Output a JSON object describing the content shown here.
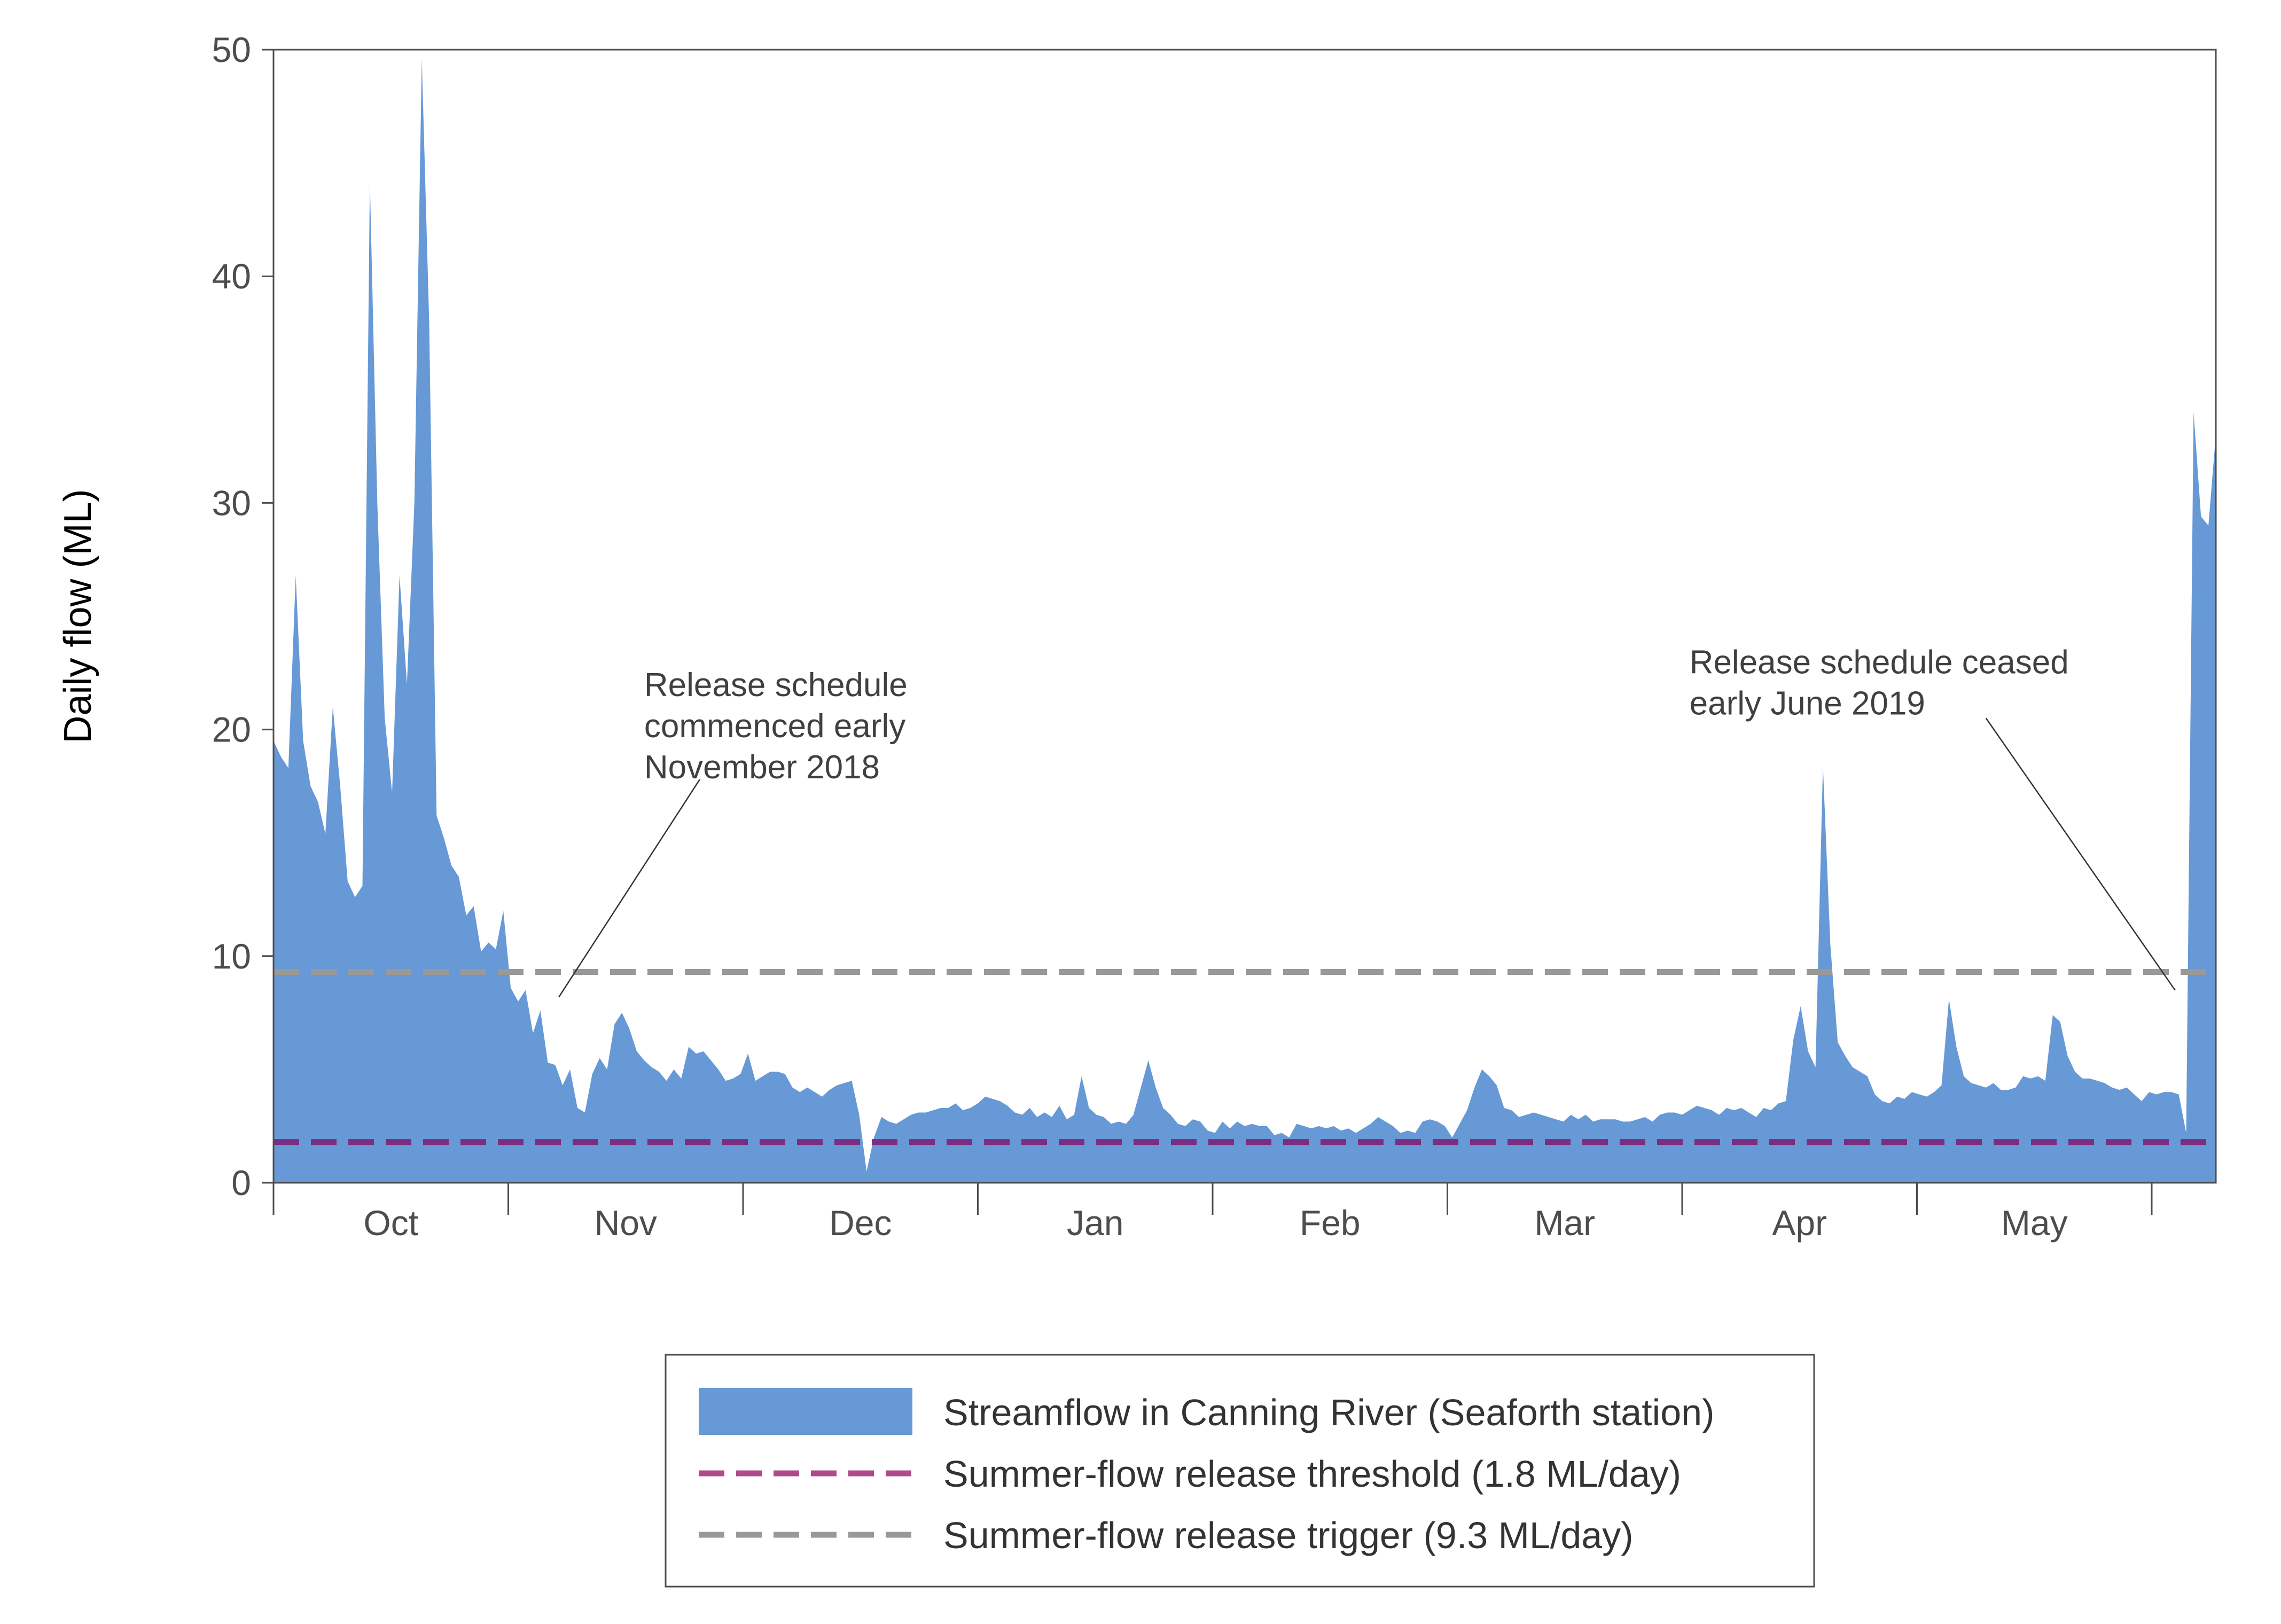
{
  "chart_data": {
    "type": "area",
    "ylabel": "Daily flow (ML)",
    "xlabel": "",
    "ylim": [
      0,
      50
    ],
    "yticks": [
      0,
      10,
      20,
      30,
      40,
      50
    ],
    "grid": false,
    "legend_position": "bottom",
    "month_labels": [
      "Oct",
      "Nov",
      "Dec",
      "Jan",
      "Feb",
      "Mar",
      "Apr",
      "May"
    ],
    "x_unit": "day since 1 October 2018",
    "series": [
      {
        "name": "Streamflow in Canning River (Seaforth station)",
        "kind": "area",
        "color": "#6699d6",
        "points": [
          [
            0,
            19.5
          ],
          [
            1,
            18.8
          ],
          [
            2,
            18.3
          ],
          [
            3,
            26.8
          ],
          [
            4,
            19.5
          ],
          [
            5,
            17.5
          ],
          [
            6,
            16.8
          ],
          [
            7,
            15.4
          ],
          [
            8,
            21.0
          ],
          [
            9,
            17.5
          ],
          [
            10,
            13.3
          ],
          [
            11,
            12.6
          ],
          [
            12,
            13.1
          ],
          [
            13,
            44.2
          ],
          [
            14,
            30.0
          ],
          [
            15,
            20.5
          ],
          [
            16,
            17.2
          ],
          [
            17,
            26.8
          ],
          [
            18,
            22.0
          ],
          [
            19,
            30.0
          ],
          [
            20,
            49.6
          ],
          [
            21,
            38.0
          ],
          [
            22,
            16.2
          ],
          [
            23,
            15.2
          ],
          [
            24,
            14.0
          ],
          [
            25,
            13.5
          ],
          [
            26,
            11.8
          ],
          [
            27,
            12.2
          ],
          [
            28,
            10.2
          ],
          [
            29,
            10.6
          ],
          [
            30,
            10.3
          ],
          [
            31,
            12.0
          ],
          [
            32,
            8.6
          ],
          [
            33,
            8.0
          ],
          [
            34,
            8.5
          ],
          [
            35,
            6.6
          ],
          [
            36,
            7.6
          ],
          [
            37,
            5.3
          ],
          [
            38,
            5.2
          ],
          [
            39,
            4.3
          ],
          [
            40,
            5.0
          ],
          [
            41,
            3.3
          ],
          [
            42,
            3.1
          ],
          [
            43,
            4.8
          ],
          [
            44,
            5.5
          ],
          [
            45,
            5.0
          ],
          [
            46,
            7.0
          ],
          [
            47,
            7.5
          ],
          [
            48,
            6.8
          ],
          [
            49,
            5.8
          ],
          [
            50,
            5.4
          ],
          [
            51,
            5.1
          ],
          [
            52,
            4.9
          ],
          [
            53,
            4.5
          ],
          [
            54,
            5.0
          ],
          [
            55,
            4.6
          ],
          [
            56,
            6.0
          ],
          [
            57,
            5.7
          ],
          [
            58,
            5.8
          ],
          [
            59,
            5.4
          ],
          [
            60,
            5.0
          ],
          [
            61,
            4.5
          ],
          [
            62,
            4.6
          ],
          [
            63,
            4.8
          ],
          [
            64,
            5.7
          ],
          [
            65,
            4.5
          ],
          [
            66,
            4.7
          ],
          [
            67,
            4.9
          ],
          [
            68,
            4.9
          ],
          [
            69,
            4.8
          ],
          [
            70,
            4.2
          ],
          [
            71,
            4.0
          ],
          [
            72,
            4.2
          ],
          [
            73,
            4.0
          ],
          [
            74,
            3.8
          ],
          [
            75,
            4.1
          ],
          [
            76,
            4.3
          ],
          [
            77,
            4.4
          ],
          [
            78,
            4.5
          ],
          [
            79,
            3.0
          ],
          [
            80,
            0.5
          ],
          [
            81,
            2.0
          ],
          [
            82,
            2.9
          ],
          [
            83,
            2.7
          ],
          [
            84,
            2.6
          ],
          [
            85,
            2.8
          ],
          [
            86,
            3.0
          ],
          [
            87,
            3.1
          ],
          [
            88,
            3.1
          ],
          [
            89,
            3.2
          ],
          [
            90,
            3.3
          ],
          [
            91,
            3.3
          ],
          [
            92,
            3.5
          ],
          [
            93,
            3.2
          ],
          [
            94,
            3.3
          ],
          [
            95,
            3.5
          ],
          [
            96,
            3.8
          ],
          [
            97,
            3.7
          ],
          [
            98,
            3.6
          ],
          [
            99,
            3.4
          ],
          [
            100,
            3.1
          ],
          [
            101,
            3.0
          ],
          [
            102,
            3.3
          ],
          [
            103,
            2.9
          ],
          [
            104,
            3.1
          ],
          [
            105,
            2.9
          ],
          [
            106,
            3.4
          ],
          [
            107,
            2.8
          ],
          [
            108,
            3.0
          ],
          [
            109,
            4.7
          ],
          [
            110,
            3.3
          ],
          [
            111,
            3.0
          ],
          [
            112,
            2.9
          ],
          [
            113,
            2.6
          ],
          [
            114,
            2.7
          ],
          [
            115,
            2.6
          ],
          [
            116,
            3.0
          ],
          [
            117,
            4.2
          ],
          [
            118,
            5.4
          ],
          [
            119,
            4.2
          ],
          [
            120,
            3.3
          ],
          [
            121,
            3.0
          ],
          [
            122,
            2.6
          ],
          [
            123,
            2.5
          ],
          [
            124,
            2.8
          ],
          [
            125,
            2.7
          ],
          [
            126,
            2.3
          ],
          [
            127,
            2.2
          ],
          [
            128,
            2.7
          ],
          [
            129,
            2.4
          ],
          [
            130,
            2.7
          ],
          [
            131,
            2.5
          ],
          [
            132,
            2.6
          ],
          [
            133,
            2.5
          ],
          [
            134,
            2.5
          ],
          [
            135,
            2.1
          ],
          [
            136,
            2.2
          ],
          [
            137,
            2.0
          ],
          [
            138,
            2.6
          ],
          [
            139,
            2.5
          ],
          [
            140,
            2.4
          ],
          [
            141,
            2.5
          ],
          [
            142,
            2.4
          ],
          [
            143,
            2.5
          ],
          [
            144,
            2.3
          ],
          [
            145,
            2.4
          ],
          [
            146,
            2.2
          ],
          [
            147,
            2.4
          ],
          [
            148,
            2.6
          ],
          [
            149,
            2.9
          ],
          [
            150,
            2.7
          ],
          [
            151,
            2.5
          ],
          [
            152,
            2.2
          ],
          [
            153,
            2.3
          ],
          [
            154,
            2.2
          ],
          [
            155,
            2.7
          ],
          [
            156,
            2.8
          ],
          [
            157,
            2.7
          ],
          [
            158,
            2.5
          ],
          [
            159,
            2.0
          ],
          [
            160,
            2.6
          ],
          [
            161,
            3.2
          ],
          [
            162,
            4.2
          ],
          [
            163,
            5.0
          ],
          [
            164,
            4.7
          ],
          [
            165,
            4.3
          ],
          [
            166,
            3.3
          ],
          [
            167,
            3.2
          ],
          [
            168,
            2.9
          ],
          [
            169,
            3.0
          ],
          [
            170,
            3.1
          ],
          [
            171,
            3.0
          ],
          [
            172,
            2.9
          ],
          [
            173,
            2.8
          ],
          [
            174,
            2.7
          ],
          [
            175,
            3.0
          ],
          [
            176,
            2.8
          ],
          [
            177,
            3.0
          ],
          [
            178,
            2.7
          ],
          [
            179,
            2.8
          ],
          [
            180,
            2.8
          ],
          [
            181,
            2.8
          ],
          [
            182,
            2.7
          ],
          [
            183,
            2.7
          ],
          [
            184,
            2.8
          ],
          [
            185,
            2.9
          ],
          [
            186,
            2.7
          ],
          [
            187,
            3.0
          ],
          [
            188,
            3.1
          ],
          [
            189,
            3.1
          ],
          [
            190,
            3.0
          ],
          [
            191,
            3.2
          ],
          [
            192,
            3.4
          ],
          [
            193,
            3.3
          ],
          [
            194,
            3.2
          ],
          [
            195,
            3.0
          ],
          [
            196,
            3.3
          ],
          [
            197,
            3.2
          ],
          [
            198,
            3.3
          ],
          [
            199,
            3.1
          ],
          [
            200,
            2.9
          ],
          [
            201,
            3.3
          ],
          [
            202,
            3.2
          ],
          [
            203,
            3.5
          ],
          [
            204,
            3.6
          ],
          [
            205,
            6.3
          ],
          [
            206,
            7.8
          ],
          [
            207,
            5.8
          ],
          [
            208,
            5.1
          ],
          [
            209,
            18.4
          ],
          [
            210,
            10.5
          ],
          [
            211,
            6.2
          ],
          [
            212,
            5.6
          ],
          [
            213,
            5.1
          ],
          [
            214,
            4.9
          ],
          [
            215,
            4.7
          ],
          [
            216,
            3.9
          ],
          [
            217,
            3.6
          ],
          [
            218,
            3.5
          ],
          [
            219,
            3.8
          ],
          [
            220,
            3.7
          ],
          [
            221,
            4.0
          ],
          [
            222,
            3.9
          ],
          [
            223,
            3.8
          ],
          [
            224,
            4.0
          ],
          [
            225,
            4.3
          ],
          [
            226,
            8.1
          ],
          [
            227,
            6.0
          ],
          [
            228,
            4.7
          ],
          [
            229,
            4.4
          ],
          [
            230,
            4.3
          ],
          [
            231,
            4.2
          ],
          [
            232,
            4.4
          ],
          [
            233,
            4.1
          ],
          [
            234,
            4.1
          ],
          [
            235,
            4.2
          ],
          [
            236,
            4.7
          ],
          [
            237,
            4.6
          ],
          [
            238,
            4.7
          ],
          [
            239,
            4.5
          ],
          [
            240,
            7.4
          ],
          [
            241,
            7.1
          ],
          [
            242,
            5.6
          ],
          [
            243,
            4.9
          ],
          [
            244,
            4.6
          ],
          [
            245,
            4.6
          ],
          [
            246,
            4.5
          ],
          [
            247,
            4.4
          ],
          [
            248,
            4.2
          ],
          [
            249,
            4.1
          ],
          [
            250,
            4.2
          ],
          [
            251,
            3.9
          ],
          [
            252,
            3.6
          ],
          [
            253,
            4.0
          ],
          [
            254,
            3.9
          ],
          [
            255,
            4.0
          ],
          [
            256,
            4.0
          ],
          [
            257,
            3.9
          ],
          [
            258,
            2.2
          ],
          [
            259,
            34.0
          ],
          [
            260,
            29.4
          ],
          [
            261,
            29.0
          ],
          [
            262,
            33.0
          ]
        ]
      },
      {
        "name": "Summer-flow release threshold (1.8 ML/day)",
        "kind": "hline",
        "value": 1.8,
        "color": "#7b2d82",
        "legend_color": "#b04a8a"
      },
      {
        "name": "Summer-flow release trigger (9.3 ML/day)",
        "kind": "hline",
        "value": 9.3,
        "color": "#999999"
      }
    ],
    "annotations": [
      {
        "lines": [
          "Release schedule",
          "commenced early",
          "November 2018"
        ],
        "text_x": 50,
        "text_y": 22,
        "pointer_from": [
          57.5,
          17.8
        ],
        "pointer_to": [
          38.5,
          8.2
        ]
      },
      {
        "lines": [
          "Release schedule ceased",
          "early June 2019"
        ],
        "text_x": 191,
        "text_y": 23,
        "pointer_from": [
          231,
          20.5
        ],
        "pointer_to": [
          256.5,
          8.5
        ]
      }
    ]
  }
}
